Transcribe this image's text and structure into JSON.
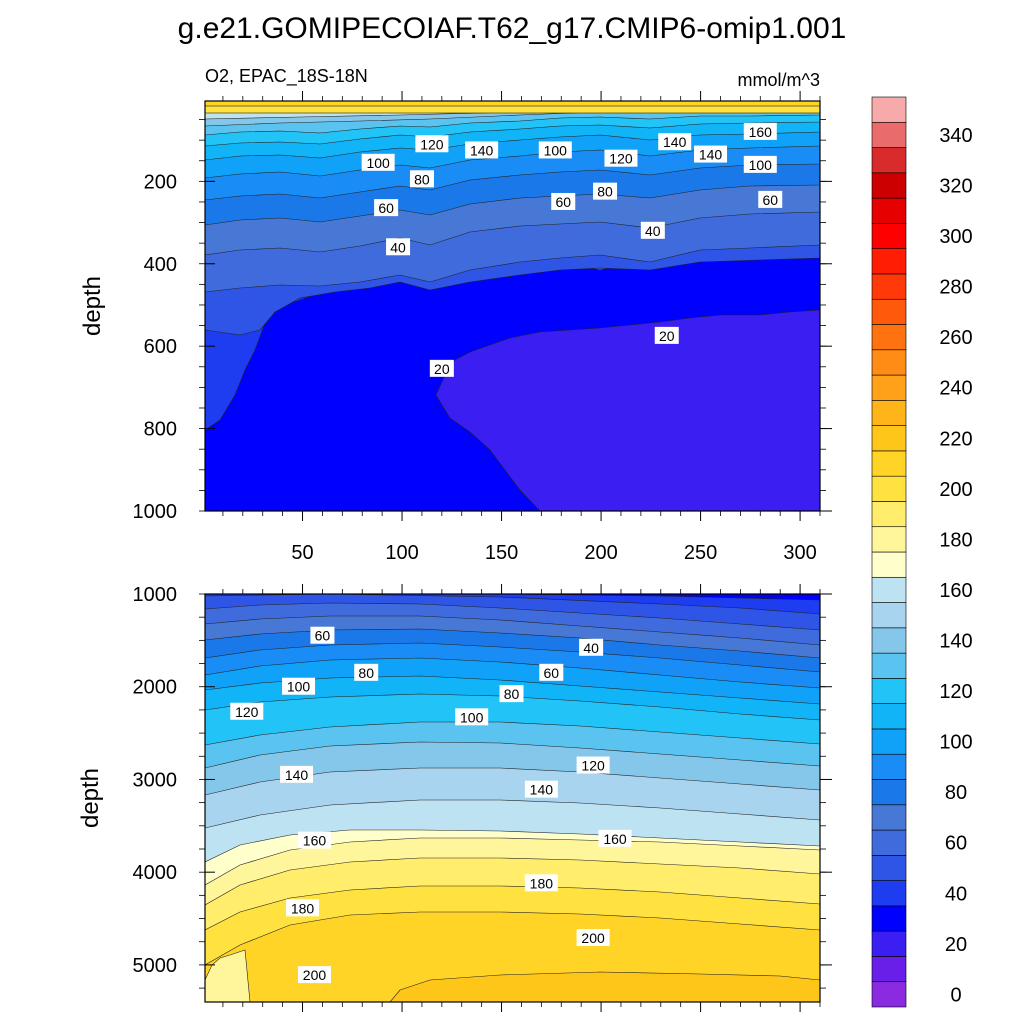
{
  "title": "g.e21.GOMIPECOIAF.T62_g17.CMIP6-omip1.001",
  "chart_data": {
    "type": "contour",
    "variable": "O2, EPAC_18S-18N",
    "units": "mmol/m^3",
    "colorbar": {
      "levels": [
        0,
        10,
        20,
        30,
        40,
        50,
        60,
        70,
        80,
        90,
        100,
        110,
        120,
        130,
        140,
        150,
        160,
        170,
        180,
        190,
        200,
        210,
        220,
        230,
        240,
        250,
        260,
        270,
        280,
        290,
        300,
        310,
        320,
        330,
        340,
        350
      ],
      "tick_labels": [
        "0",
        "20",
        "40",
        "60",
        "80",
        "100",
        "120",
        "140",
        "160",
        "180",
        "200",
        "220",
        "240",
        "260",
        "280",
        "300",
        "320",
        "340"
      ],
      "colors": [
        "#8a2be2",
        "#6a1fe8",
        "#3a1ef2",
        "#0000ff",
        "#1e3cf0",
        "#2f55e6",
        "#3f6bdc",
        "#4778d6",
        "#1a78e8",
        "#1a8cf5",
        "#0fa2f8",
        "#12b4f8",
        "#22c3f6",
        "#5bc3ef",
        "#85c7ea",
        "#a8d4ef",
        "#bde2f2",
        "#ffffcc",
        "#fff59a",
        "#ffed6b",
        "#ffe240",
        "#ffd426",
        "#ffc61a",
        "#ffb41a",
        "#ffa21a",
        "#ff8c14",
        "#ff7210",
        "#ff5a0c",
        "#ff3a08",
        "#ff1e04",
        "#ff0000",
        "#e60000",
        "#cc0000",
        "#d92b2b",
        "#ea6b6b",
        "#f6aaaa"
      ]
    },
    "panels": [
      {
        "name": "upper",
        "xlabel": "",
        "ylabel": "depth",
        "x_ticks": [
          "50",
          "100",
          "150",
          "200",
          "250",
          "300"
        ],
        "x_values": [
          50,
          100,
          150,
          200,
          250,
          300
        ],
        "y_ticks": [
          "200",
          "400",
          "600",
          "800",
          "1000"
        ],
        "y_values": [
          200,
          400,
          600,
          800,
          1000
        ],
        "xlim": [
          1,
          310
        ],
        "ylim": [
          1000,
          5
        ],
        "contour_labels": [
          {
            "text": "120",
            "x": 115,
            "y": 110
          },
          {
            "text": "140",
            "x": 140,
            "y": 125
          },
          {
            "text": "100",
            "x": 88,
            "y": 155
          },
          {
            "text": "80",
            "x": 110,
            "y": 195
          },
          {
            "text": "60",
            "x": 92,
            "y": 265
          },
          {
            "text": "40",
            "x": 98,
            "y": 360
          },
          {
            "text": "100",
            "x": 177,
            "y": 125
          },
          {
            "text": "120",
            "x": 210,
            "y": 145
          },
          {
            "text": "140",
            "x": 237,
            "y": 105
          },
          {
            "text": "140",
            "x": 255,
            "y": 135
          },
          {
            "text": "160",
            "x": 280,
            "y": 80
          },
          {
            "text": "100",
            "x": 280,
            "y": 160
          },
          {
            "text": "80",
            "x": 202,
            "y": 225
          },
          {
            "text": "60",
            "x": 181,
            "y": 250
          },
          {
            "text": "60",
            "x": 285,
            "y": 245
          },
          {
            "text": "40",
            "x": 226,
            "y": 320
          },
          {
            "text": "20",
            "x": 233,
            "y": 575
          },
          {
            "text": "20",
            "x": 120,
            "y": 655
          }
        ]
      },
      {
        "name": "lower",
        "xlabel": "",
        "ylabel": "depth",
        "x_ticks": [],
        "y_ticks": [
          "1000",
          "2000",
          "3000",
          "4000",
          "5000"
        ],
        "y_values": [
          1000,
          2000,
          3000,
          4000,
          5000
        ],
        "xlim": [
          1,
          310
        ],
        "ylim": [
          5400,
          1000
        ],
        "contour_labels": [
          {
            "text": "60",
            "x": 60,
            "y": 1450
          },
          {
            "text": "80",
            "x": 82,
            "y": 1850
          },
          {
            "text": "100",
            "x": 48,
            "y": 2000
          },
          {
            "text": "120",
            "x": 22,
            "y": 2270
          },
          {
            "text": "40",
            "x": 195,
            "y": 1580
          },
          {
            "text": "60",
            "x": 175,
            "y": 1850
          },
          {
            "text": "80",
            "x": 155,
            "y": 2080
          },
          {
            "text": "100",
            "x": 135,
            "y": 2330
          },
          {
            "text": "120",
            "x": 196,
            "y": 2850
          },
          {
            "text": "140",
            "x": 47,
            "y": 2950
          },
          {
            "text": "140",
            "x": 170,
            "y": 3110
          },
          {
            "text": "160",
            "x": 56,
            "y": 3660
          },
          {
            "text": "160",
            "x": 207,
            "y": 3640
          },
          {
            "text": "180",
            "x": 170,
            "y": 4120
          },
          {
            "text": "180",
            "x": 50,
            "y": 4390
          },
          {
            "text": "200",
            "x": 196,
            "y": 4710
          },
          {
            "text": "200",
            "x": 56,
            "y": 5110
          }
        ]
      }
    ]
  }
}
